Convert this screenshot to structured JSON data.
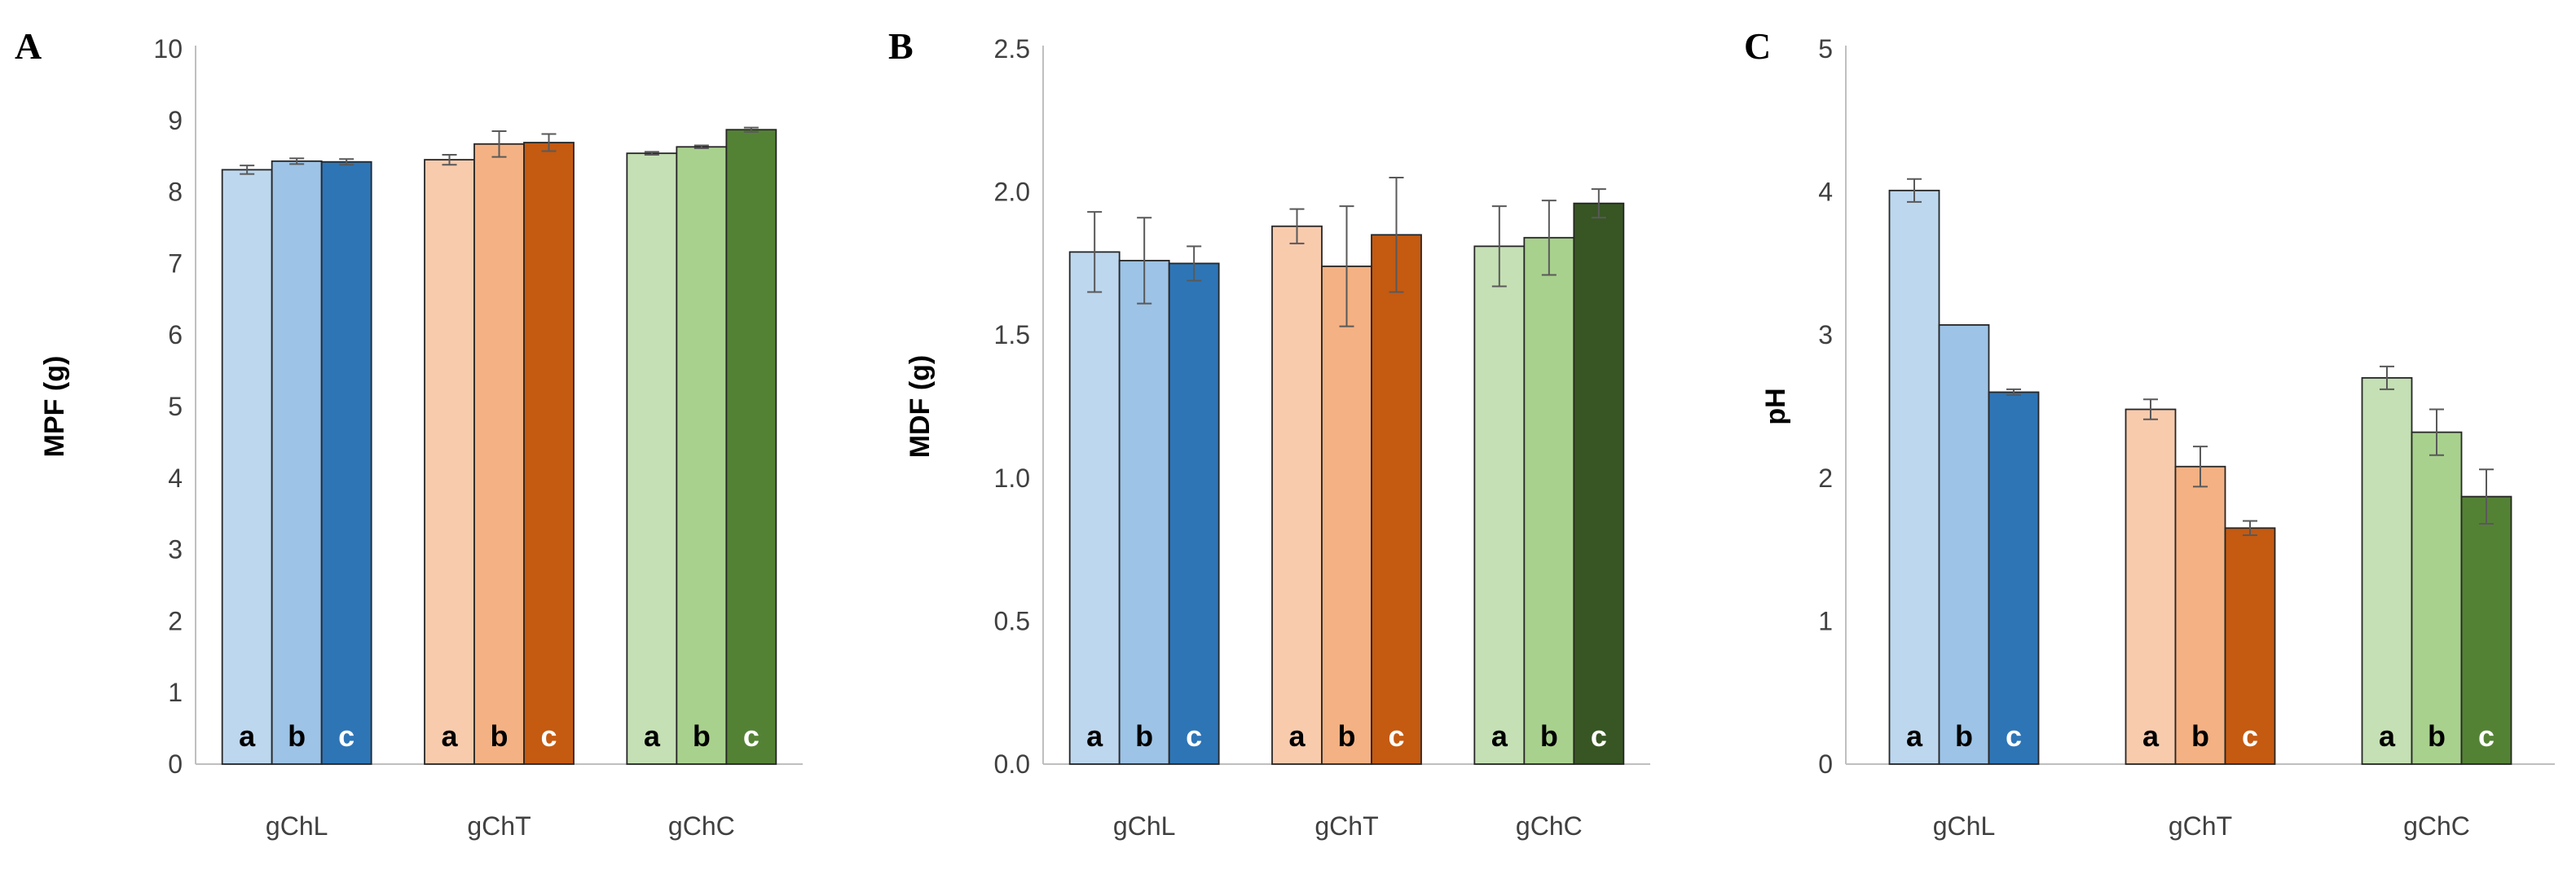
{
  "chart_data": [
    {
      "panel": "A",
      "type": "bar",
      "ylabel": "MPF (g)",
      "ylim": [
        0,
        10
      ],
      "yticks": [
        "0",
        "1",
        "2",
        "3",
        "4",
        "5",
        "6",
        "7",
        "8",
        "9",
        "10"
      ],
      "categories": [
        "gChL",
        "gChT",
        "gChC"
      ],
      "bar_labels": [
        "a",
        "b",
        "c"
      ],
      "series": [
        {
          "name": "a",
          "values": [
            8.31,
            8.45,
            8.54
          ],
          "errors": [
            0.06,
            0.07,
            0.02
          ]
        },
        {
          "name": "b",
          "values": [
            8.43,
            8.67,
            8.63
          ],
          "errors": [
            0.04,
            0.18,
            0.02
          ]
        },
        {
          "name": "c",
          "values": [
            8.42,
            8.69,
            8.87
          ],
          "errors": [
            0.04,
            0.12,
            0.03
          ]
        }
      ]
    },
    {
      "panel": "B",
      "type": "bar",
      "ylabel": "MDF (g)",
      "ylim": [
        0,
        2.5
      ],
      "yticks": [
        "0.0",
        "0.5",
        "1.0",
        "1.5",
        "2.0",
        "2.5"
      ],
      "categories": [
        "gChL",
        "gChT",
        "gChC"
      ],
      "bar_labels": [
        "a",
        "b",
        "c"
      ],
      "series": [
        {
          "name": "a",
          "values": [
            1.79,
            1.88,
            1.81
          ],
          "errors": [
            0.14,
            0.06,
            0.14
          ]
        },
        {
          "name": "b",
          "values": [
            1.76,
            1.74,
            1.84
          ],
          "errors": [
            0.15,
            0.21,
            0.13
          ]
        },
        {
          "name": "c",
          "values": [
            1.75,
            1.85,
            1.96
          ],
          "errors": [
            0.06,
            0.2,
            0.05
          ]
        }
      ]
    },
    {
      "panel": "C",
      "type": "bar",
      "ylabel": "pH",
      "ylim": [
        0,
        5
      ],
      "yticks": [
        "0",
        "1",
        "2",
        "3",
        "4",
        "5"
      ],
      "categories": [
        "gChL",
        "gChT",
        "gChC"
      ],
      "bar_labels": [
        "a",
        "b",
        "c"
      ],
      "series": [
        {
          "name": "a",
          "values": [
            4.01,
            2.48,
            2.7
          ],
          "errors": [
            0.08,
            0.07,
            0.08
          ]
        },
        {
          "name": "b",
          "values": [
            3.07,
            2.08,
            2.32
          ],
          "errors": [
            0.0,
            0.14,
            0.16
          ]
        },
        {
          "name": "c",
          "values": [
            2.6,
            1.65,
            1.87
          ],
          "errors": [
            0.02,
            0.05,
            0.19
          ]
        }
      ]
    }
  ],
  "colors": {
    "A": [
      [
        "#bdd7ee",
        "#9dc3e6",
        "#2e75b6"
      ],
      [
        "#f8cbad",
        "#f4b183",
        "#c55a11"
      ],
      [
        "#c5e0b4",
        "#a9d18e",
        "#548235"
      ]
    ],
    "B": [
      [
        "#bdd7ee",
        "#9dc3e6",
        "#2e75b6"
      ],
      [
        "#f8cbad",
        "#f4b183",
        "#c55a11"
      ],
      [
        "#c5e0b4",
        "#a9d18e",
        "#375623"
      ]
    ],
    "C": [
      [
        "#bdd7ee",
        "#9dc3e6",
        "#2e75b6"
      ],
      [
        "#f8cbad",
        "#f4b183",
        "#c55a11"
      ],
      [
        "#c5e0b4",
        "#a9d18e",
        "#548235"
      ]
    ],
    "letter_dark": "#000000",
    "letter_light": "#ffffff",
    "axis": "#bfbfbf",
    "bar_outline": "#262626",
    "error_bar": "#595959"
  }
}
